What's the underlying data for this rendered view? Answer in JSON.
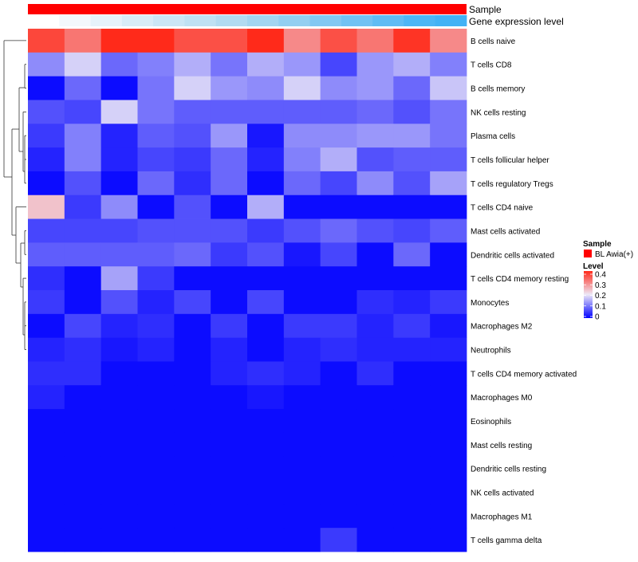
{
  "chart_data": {
    "type": "heatmap",
    "annotation_tracks": [
      {
        "name": "Sample",
        "value": "BL Awia(+)",
        "color": "#ff0000"
      },
      {
        "name": "Gene expression level",
        "colors": [
          "#ffffff",
          "#f3f8fc",
          "#e6f2fa",
          "#d8ecf7",
          "#cbe6f5",
          "#bfe1f3",
          "#b2dbf1",
          "#a3d5f0",
          "#93cff1",
          "#82c8f2",
          "#71c2f3",
          "#5fbcf4",
          "#4db6f5",
          "#43b2f5"
        ]
      }
    ],
    "rows": [
      {
        "label": "B cells naive",
        "values": [
          0.37,
          0.32,
          0.4,
          0.4,
          0.36,
          0.36,
          0.4,
          0.3,
          0.36,
          0.32,
          0.39,
          0.3
        ]
      },
      {
        "label": "T cells CD8",
        "values": [
          0.12,
          0.18,
          0.09,
          0.11,
          0.15,
          0.1,
          0.15,
          0.13,
          0.06,
          0.13,
          0.15,
          0.11
        ]
      },
      {
        "label": "B cells memory",
        "values": [
          0.01,
          0.09,
          0.01,
          0.1,
          0.18,
          0.13,
          0.12,
          0.18,
          0.12,
          0.13,
          0.09,
          0.17
        ]
      },
      {
        "label": "NK cells resting",
        "values": [
          0.07,
          0.06,
          0.18,
          0.1,
          0.08,
          0.08,
          0.08,
          0.08,
          0.08,
          0.09,
          0.07,
          0.1
        ]
      },
      {
        "label": "Plasma cells",
        "values": [
          0.05,
          0.11,
          0.03,
          0.08,
          0.07,
          0.13,
          0.02,
          0.12,
          0.12,
          0.13,
          0.13,
          0.1
        ]
      },
      {
        "label": "T cells follicular helper",
        "values": [
          0.03,
          0.11,
          0.03,
          0.06,
          0.05,
          0.09,
          0.03,
          0.11,
          0.15,
          0.07,
          0.08,
          0.08
        ]
      },
      {
        "label": "T cells regulatory  Tregs",
        "values": [
          0.01,
          0.07,
          0.01,
          0.09,
          0.04,
          0.09,
          0.01,
          0.09,
          0.06,
          0.12,
          0.07,
          0.14
        ]
      },
      {
        "label": "T cells CD4 naive",
        "values": [
          0.24,
          0.05,
          0.12,
          0.01,
          0.07,
          0.01,
          0.15,
          0.01,
          0.01,
          0.01,
          0.01,
          0.01
        ]
      },
      {
        "label": "Mast cells activated",
        "values": [
          0.06,
          0.06,
          0.06,
          0.07,
          0.07,
          0.07,
          0.05,
          0.07,
          0.09,
          0.07,
          0.06,
          0.08
        ]
      },
      {
        "label": "Dendritic cells activated",
        "values": [
          0.08,
          0.08,
          0.08,
          0.08,
          0.09,
          0.05,
          0.07,
          0.02,
          0.06,
          0.01,
          0.09,
          0.01
        ]
      },
      {
        "label": "T cells CD4 memory resting",
        "values": [
          0.04,
          0.01,
          0.14,
          0.05,
          0.01,
          0.01,
          0.01,
          0.01,
          0.01,
          0.01,
          0.01,
          0.01
        ]
      },
      {
        "label": "Monocytes",
        "values": [
          0.05,
          0.01,
          0.07,
          0.03,
          0.06,
          0.01,
          0.06,
          0.01,
          0.01,
          0.04,
          0.03,
          0.05
        ]
      },
      {
        "label": "Macrophages M2",
        "values": [
          0.01,
          0.06,
          0.03,
          0.04,
          0.01,
          0.05,
          0.01,
          0.05,
          0.05,
          0.03,
          0.05,
          0.02
        ]
      },
      {
        "label": "Neutrophils",
        "values": [
          0.03,
          0.04,
          0.02,
          0.03,
          0.01,
          0.03,
          0.01,
          0.03,
          0.04,
          0.03,
          0.03,
          0.03
        ]
      },
      {
        "label": "T cells CD4 memory activated",
        "values": [
          0.04,
          0.04,
          0.01,
          0.01,
          0.01,
          0.03,
          0.04,
          0.03,
          0.01,
          0.04,
          0.01,
          0.01
        ]
      },
      {
        "label": "Macrophages M0",
        "values": [
          0.03,
          0.01,
          0.01,
          0.01,
          0.01,
          0.01,
          0.02,
          0.01,
          0.01,
          0.01,
          0.01,
          0.01
        ]
      },
      {
        "label": "Eosinophils",
        "values": [
          0.01,
          0.01,
          0.01,
          0.01,
          0.01,
          0.01,
          0.01,
          0.01,
          0.01,
          0.01,
          0.01,
          0.01
        ]
      },
      {
        "label": "Mast cells resting",
        "values": [
          0.01,
          0.01,
          0.01,
          0.01,
          0.01,
          0.01,
          0.01,
          0.01,
          0.01,
          0.01,
          0.01,
          0.01
        ]
      },
      {
        "label": "Dendritic cells resting",
        "values": [
          0.01,
          0.01,
          0.01,
          0.01,
          0.01,
          0.01,
          0.01,
          0.01,
          0.01,
          0.01,
          0.01,
          0.01
        ]
      },
      {
        "label": "NK cells activated",
        "values": [
          0.01,
          0.01,
          0.01,
          0.01,
          0.01,
          0.01,
          0.01,
          0.01,
          0.01,
          0.01,
          0.01,
          0.01
        ]
      },
      {
        "label": "Macrophages M1",
        "values": [
          0.01,
          0.01,
          0.01,
          0.01,
          0.01,
          0.01,
          0.01,
          0.01,
          0.01,
          0.01,
          0.01,
          0.01
        ]
      },
      {
        "label": "T cells gamma delta",
        "values": [
          0.01,
          0.01,
          0.01,
          0.01,
          0.01,
          0.01,
          0.01,
          0.01,
          0.05,
          0.01,
          0.01,
          0.01
        ]
      }
    ],
    "color_scale": {
      "min": 0,
      "mid": 0.2,
      "max": 0.4,
      "low_color": "#0000ff",
      "mid_color": "#ede8f7",
      "high_color": "#ff2a1a"
    },
    "legend": {
      "sample_title": "Sample",
      "sample_entry": "BL Awia(+)",
      "level_title": "Level",
      "ticks": [
        0.4,
        0.3,
        0.2,
        0.1,
        0
      ],
      "placement": "right"
    }
  }
}
